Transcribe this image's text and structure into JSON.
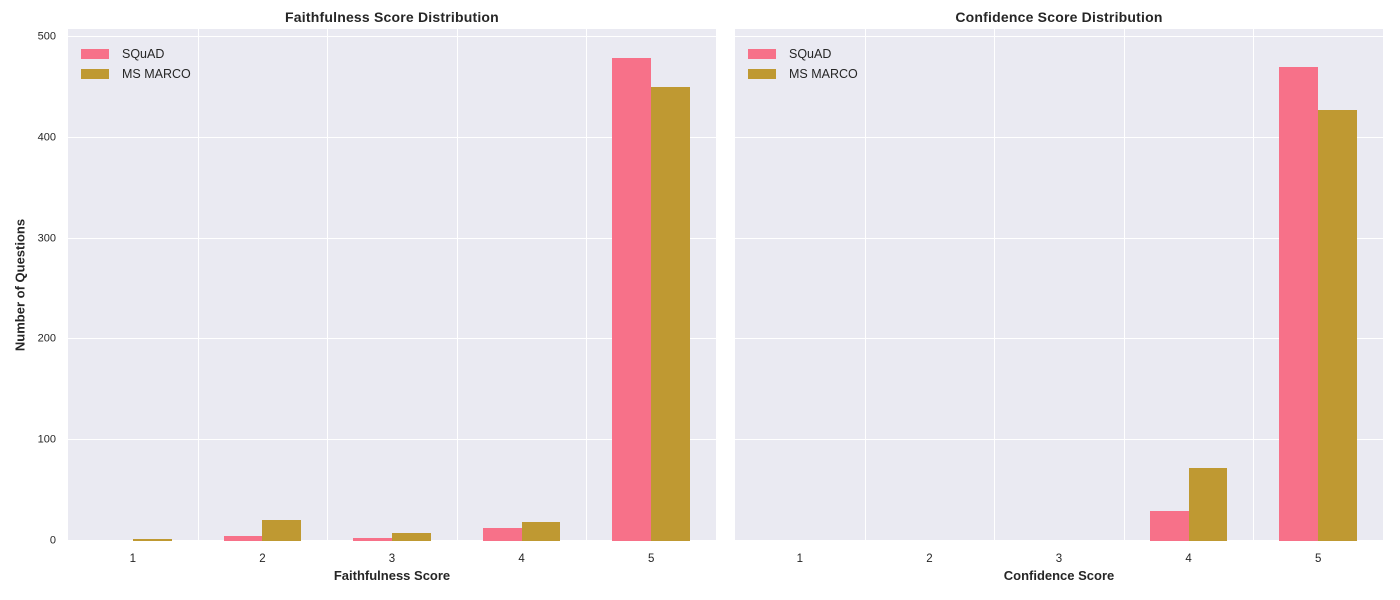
{
  "figure": {
    "background": "#ffffff",
    "plot_background": "#eaeaf2",
    "grid_color": "#ffffff",
    "text_color": "#262626"
  },
  "chart_data": [
    {
      "type": "bar",
      "title": "Faithfulness Score Distribution",
      "xlabel": "Faithfulness Score",
      "ylabel": "Number of Questions",
      "categories": [
        "1",
        "2",
        "3",
        "4",
        "5"
      ],
      "series": [
        {
          "name": "SQuAD",
          "color": "#f77189",
          "values": [
            0,
            5,
            3,
            13,
            479
          ]
        },
        {
          "name": "MS MARCO",
          "color": "#bf9932",
          "values": [
            2,
            21,
            8,
            19,
            450
          ]
        }
      ],
      "yticks": [
        0,
        100,
        200,
        300,
        400,
        500
      ],
      "ylim": [
        0,
        508
      ],
      "grid": true,
      "legend_position": "upper left",
      "show_yticklabels": true
    },
    {
      "type": "bar",
      "title": "Confidence Score Distribution",
      "xlabel": "Confidence Score",
      "ylabel": "",
      "categories": [
        "1",
        "2",
        "3",
        "4",
        "5"
      ],
      "series": [
        {
          "name": "SQuAD",
          "color": "#f77189",
          "values": [
            0,
            0,
            0,
            30,
            470
          ]
        },
        {
          "name": "MS MARCO",
          "color": "#bf9932",
          "values": [
            0,
            0,
            0,
            72,
            428
          ]
        }
      ],
      "yticks": [
        0,
        100,
        200,
        300,
        400,
        500
      ],
      "ylim": [
        0,
        508
      ],
      "grid": true,
      "legend_position": "upper left",
      "show_yticklabels": false
    }
  ]
}
